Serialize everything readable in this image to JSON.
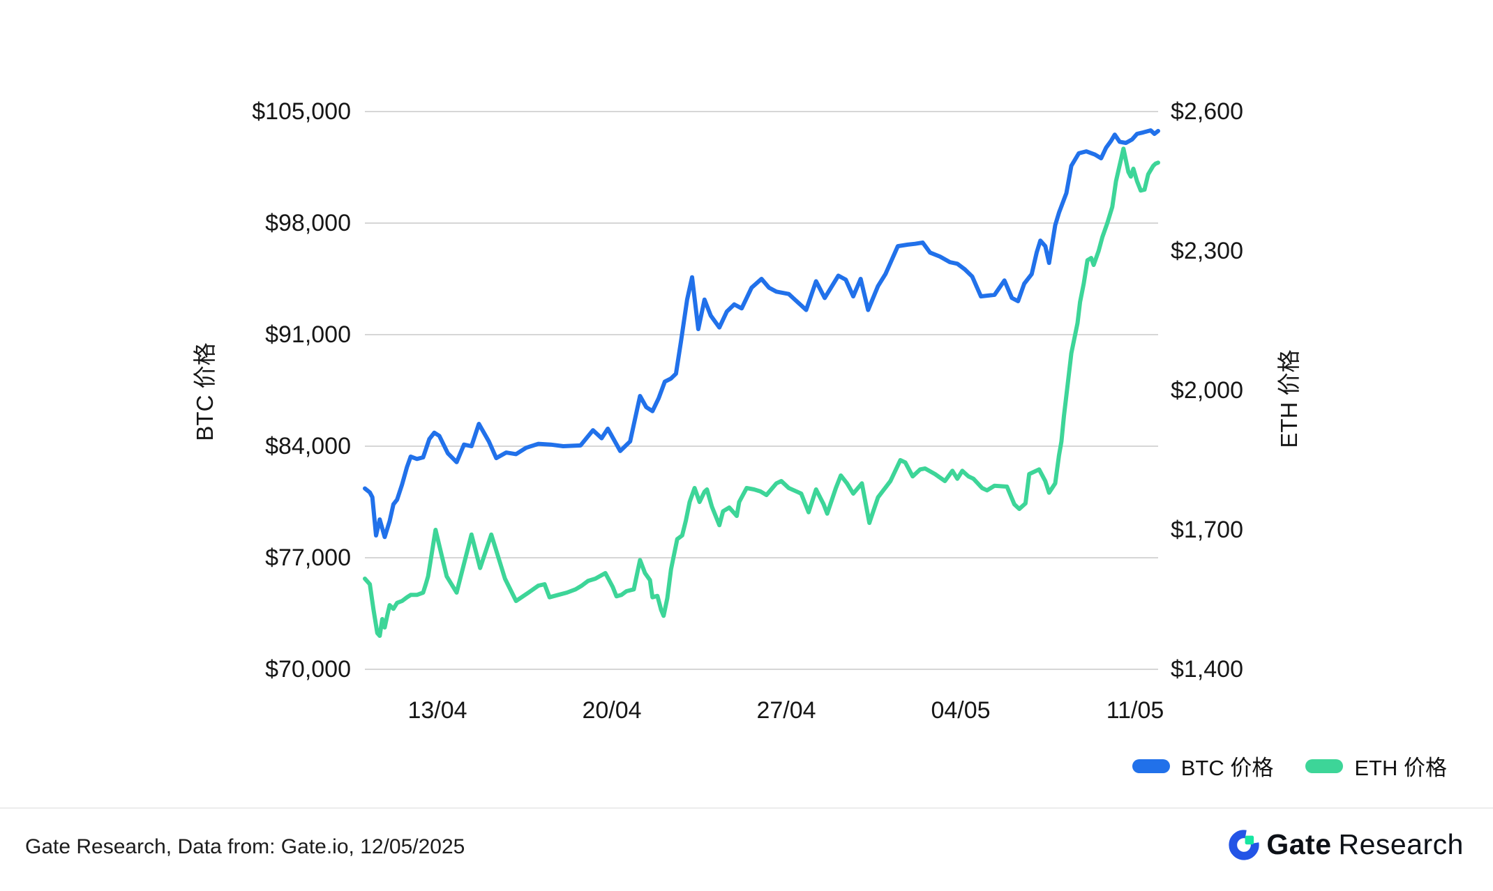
{
  "footer": {
    "source_text": "Gate Research, Data from: Gate.io, 12/05/2025",
    "brand": {
      "bold": "Gate",
      "light": "Research"
    }
  },
  "legend": {
    "items": [
      {
        "label": "BTC 价格",
        "color": "#2171EA"
      },
      {
        "label": "ETH 价格",
        "color": "#3DD598"
      }
    ]
  },
  "colors": {
    "btc_line": "#2171EA",
    "eth_line": "#3DD598",
    "gridline": "#d6d6d6",
    "logo_blue": "#2354E6",
    "logo_green": "#17E6A1"
  },
  "chart_data": {
    "type": "line",
    "title": "",
    "grid": true,
    "legend_position": "bottom-right",
    "x_axis": {
      "tick_labels": [
        "13/04",
        "20/04",
        "27/04",
        "04/05",
        "11/05"
      ],
      "tick_days": [
        3,
        10,
        17,
        24,
        31
      ],
      "domain_days": [
        0,
        32
      ],
      "start_date": "10/04",
      "end_date": "12/05"
    },
    "left_axis": {
      "title": "BTC 价格",
      "tick_labels": [
        "$105,000",
        "$98,000",
        "$91,000",
        "$84,000",
        "$77,000",
        "$70,000"
      ],
      "range": [
        70000,
        105000
      ]
    },
    "right_axis": {
      "title": "ETH 价格",
      "tick_labels": [
        "$2,600",
        "$2,300",
        "$2,000",
        "$1,700",
        "$1,400"
      ],
      "range": [
        1400,
        2600
      ]
    },
    "series": [
      {
        "name": "BTC 价格",
        "axis": "left",
        "color": "#2171EA",
        "points": [
          [
            0,
            81350
          ],
          [
            0.2,
            81100
          ],
          [
            0.3,
            80800
          ],
          [
            0.45,
            78400
          ],
          [
            0.6,
            79400
          ],
          [
            0.8,
            78300
          ],
          [
            1,
            79300
          ],
          [
            1.15,
            80350
          ],
          [
            1.3,
            80650
          ],
          [
            1.5,
            81600
          ],
          [
            1.7,
            82700
          ],
          [
            1.85,
            83350
          ],
          [
            2.1,
            83200
          ],
          [
            2.35,
            83300
          ],
          [
            2.6,
            84450
          ],
          [
            2.8,
            84850
          ],
          [
            3,
            84650
          ],
          [
            3.35,
            83550
          ],
          [
            3.7,
            83000
          ],
          [
            4,
            84100
          ],
          [
            4.3,
            84000
          ],
          [
            4.6,
            85400
          ],
          [
            5,
            84300
          ],
          [
            5.3,
            83250
          ],
          [
            5.7,
            83600
          ],
          [
            6.1,
            83500
          ],
          [
            6.5,
            83900
          ],
          [
            7,
            84150
          ],
          [
            7.5,
            84100
          ],
          [
            8,
            84000
          ],
          [
            8.7,
            84050
          ],
          [
            9.2,
            85000
          ],
          [
            9.55,
            84500
          ],
          [
            9.8,
            85100
          ],
          [
            10.3,
            83700
          ],
          [
            10.7,
            84300
          ],
          [
            11.1,
            87150
          ],
          [
            11.35,
            86450
          ],
          [
            11.6,
            86200
          ],
          [
            11.85,
            87000
          ],
          [
            12.1,
            88050
          ],
          [
            12.35,
            88250
          ],
          [
            12.55,
            88550
          ],
          [
            12.75,
            90550
          ],
          [
            13,
            93200
          ],
          [
            13.2,
            94600
          ],
          [
            13.45,
            91350
          ],
          [
            13.7,
            93200
          ],
          [
            13.95,
            92200
          ],
          [
            14.3,
            91450
          ],
          [
            14.6,
            92450
          ],
          [
            14.9,
            92900
          ],
          [
            15.2,
            92650
          ],
          [
            15.6,
            93950
          ],
          [
            16,
            94500
          ],
          [
            16.3,
            93950
          ],
          [
            16.6,
            93700
          ],
          [
            17.1,
            93550
          ],
          [
            17.8,
            92550
          ],
          [
            18.2,
            94350
          ],
          [
            18.55,
            93300
          ],
          [
            19.1,
            94700
          ],
          [
            19.4,
            94450
          ],
          [
            19.7,
            93400
          ],
          [
            20,
            94500
          ],
          [
            20.3,
            92550
          ],
          [
            20.7,
            94050
          ],
          [
            21,
            94800
          ],
          [
            21.5,
            96550
          ],
          [
            21.9,
            96650
          ],
          [
            22.2,
            96700
          ],
          [
            22.5,
            96780
          ],
          [
            22.8,
            96150
          ],
          [
            23.2,
            95900
          ],
          [
            23.6,
            95550
          ],
          [
            23.9,
            95450
          ],
          [
            24.2,
            95100
          ],
          [
            24.5,
            94650
          ],
          [
            24.85,
            93400
          ],
          [
            25.4,
            93500
          ],
          [
            25.8,
            94400
          ],
          [
            26.1,
            93300
          ],
          [
            26.35,
            93100
          ],
          [
            26.6,
            94200
          ],
          [
            26.9,
            94800
          ],
          [
            27.1,
            96150
          ],
          [
            27.25,
            96900
          ],
          [
            27.45,
            96550
          ],
          [
            27.6,
            95500
          ],
          [
            27.85,
            97870
          ],
          [
            28,
            98650
          ],
          [
            28.3,
            99880
          ],
          [
            28.5,
            101590
          ],
          [
            28.8,
            102380
          ],
          [
            29.1,
            102500
          ],
          [
            29.45,
            102300
          ],
          [
            29.7,
            102070
          ],
          [
            29.9,
            102730
          ],
          [
            30.1,
            103160
          ],
          [
            30.25,
            103550
          ],
          [
            30.45,
            103100
          ],
          [
            30.7,
            103030
          ],
          [
            30.95,
            103250
          ],
          [
            31.15,
            103600
          ],
          [
            31.4,
            103690
          ],
          [
            31.7,
            103820
          ],
          [
            31.85,
            103600
          ],
          [
            32,
            103780
          ]
        ]
      },
      {
        "name": "ETH 价格",
        "axis": "right",
        "color": "#3DD598",
        "points": [
          [
            0,
            1595
          ],
          [
            0.2,
            1583
          ],
          [
            0.35,
            1528
          ],
          [
            0.5,
            1478
          ],
          [
            0.6,
            1472
          ],
          [
            0.7,
            1508
          ],
          [
            0.8,
            1490
          ],
          [
            0.9,
            1515
          ],
          [
            1,
            1538
          ],
          [
            1.15,
            1530
          ],
          [
            1.3,
            1543
          ],
          [
            1.5,
            1547
          ],
          [
            1.7,
            1555
          ],
          [
            1.85,
            1560
          ],
          [
            2.1,
            1560
          ],
          [
            2.35,
            1565
          ],
          [
            2.45,
            1582
          ],
          [
            2.55,
            1600
          ],
          [
            2.85,
            1700
          ],
          [
            3.3,
            1600
          ],
          [
            3.7,
            1565
          ],
          [
            4.3,
            1690
          ],
          [
            4.65,
            1618
          ],
          [
            5.1,
            1690
          ],
          [
            5.65,
            1595
          ],
          [
            6.1,
            1547
          ],
          [
            6.6,
            1565
          ],
          [
            7,
            1580
          ],
          [
            7.25,
            1583
          ],
          [
            7.45,
            1555
          ],
          [
            7.8,
            1560
          ],
          [
            8.15,
            1565
          ],
          [
            8.5,
            1572
          ],
          [
            8.75,
            1580
          ],
          [
            9,
            1590
          ],
          [
            9.3,
            1595
          ],
          [
            9.7,
            1607
          ],
          [
            10,
            1577
          ],
          [
            10.15,
            1557
          ],
          [
            10.35,
            1560
          ],
          [
            10.55,
            1568
          ],
          [
            10.85,
            1572
          ],
          [
            11,
            1610
          ],
          [
            11.1,
            1635
          ],
          [
            11.3,
            1607
          ],
          [
            11.5,
            1592
          ],
          [
            11.6,
            1555
          ],
          [
            11.8,
            1558
          ],
          [
            11.95,
            1528
          ],
          [
            12.05,
            1515
          ],
          [
            12.2,
            1553
          ],
          [
            12.35,
            1615
          ],
          [
            12.6,
            1680
          ],
          [
            12.8,
            1688
          ],
          [
            12.95,
            1720
          ],
          [
            13.1,
            1760
          ],
          [
            13.3,
            1790
          ],
          [
            13.5,
            1760
          ],
          [
            13.7,
            1782
          ],
          [
            13.8,
            1787
          ],
          [
            14,
            1750
          ],
          [
            14.3,
            1710
          ],
          [
            14.45,
            1740
          ],
          [
            14.7,
            1748
          ],
          [
            15,
            1730
          ],
          [
            15.1,
            1760
          ],
          [
            15.4,
            1790
          ],
          [
            15.7,
            1787
          ],
          [
            15.95,
            1783
          ],
          [
            16.2,
            1775
          ],
          [
            16.6,
            1800
          ],
          [
            16.8,
            1805
          ],
          [
            17.1,
            1790
          ],
          [
            17.6,
            1778
          ],
          [
            17.9,
            1738
          ],
          [
            18.2,
            1787
          ],
          [
            18.5,
            1756
          ],
          [
            18.65,
            1735
          ],
          [
            19,
            1790
          ],
          [
            19.2,
            1817
          ],
          [
            19.45,
            1800
          ],
          [
            19.7,
            1778
          ],
          [
            20.05,
            1800
          ],
          [
            20.35,
            1715
          ],
          [
            20.7,
            1770
          ],
          [
            21.2,
            1805
          ],
          [
            21.6,
            1850
          ],
          [
            21.8,
            1845
          ],
          [
            22.1,
            1815
          ],
          [
            22.4,
            1830
          ],
          [
            22.6,
            1832
          ],
          [
            23,
            1820
          ],
          [
            23.4,
            1805
          ],
          [
            23.7,
            1827
          ],
          [
            23.9,
            1810
          ],
          [
            24.1,
            1827
          ],
          [
            24.35,
            1815
          ],
          [
            24.55,
            1810
          ],
          [
            24.9,
            1790
          ],
          [
            25.1,
            1785
          ],
          [
            25.4,
            1795
          ],
          [
            25.9,
            1793
          ],
          [
            26.2,
            1755
          ],
          [
            26.4,
            1745
          ],
          [
            26.65,
            1757
          ],
          [
            26.8,
            1820
          ],
          [
            27.2,
            1830
          ],
          [
            27.45,
            1805
          ],
          [
            27.6,
            1780
          ],
          [
            27.85,
            1800
          ],
          [
            28,
            1860
          ],
          [
            28.1,
            1890
          ],
          [
            28.2,
            1945
          ],
          [
            28.35,
            2012
          ],
          [
            28.5,
            2080
          ],
          [
            28.75,
            2145
          ],
          [
            28.85,
            2190
          ],
          [
            29,
            2230
          ],
          [
            29.15,
            2280
          ],
          [
            29.3,
            2285
          ],
          [
            29.4,
            2270
          ],
          [
            29.6,
            2300
          ],
          [
            29.75,
            2330
          ],
          [
            29.95,
            2360
          ],
          [
            30.15,
            2395
          ],
          [
            30.3,
            2450
          ],
          [
            30.6,
            2520
          ],
          [
            30.8,
            2470
          ],
          [
            30.9,
            2460
          ],
          [
            31,
            2477
          ],
          [
            31.15,
            2450
          ],
          [
            31.3,
            2430
          ],
          [
            31.45,
            2432
          ],
          [
            31.6,
            2465
          ],
          [
            31.8,
            2483
          ],
          [
            31.9,
            2488
          ],
          [
            32,
            2490
          ]
        ]
      }
    ]
  }
}
